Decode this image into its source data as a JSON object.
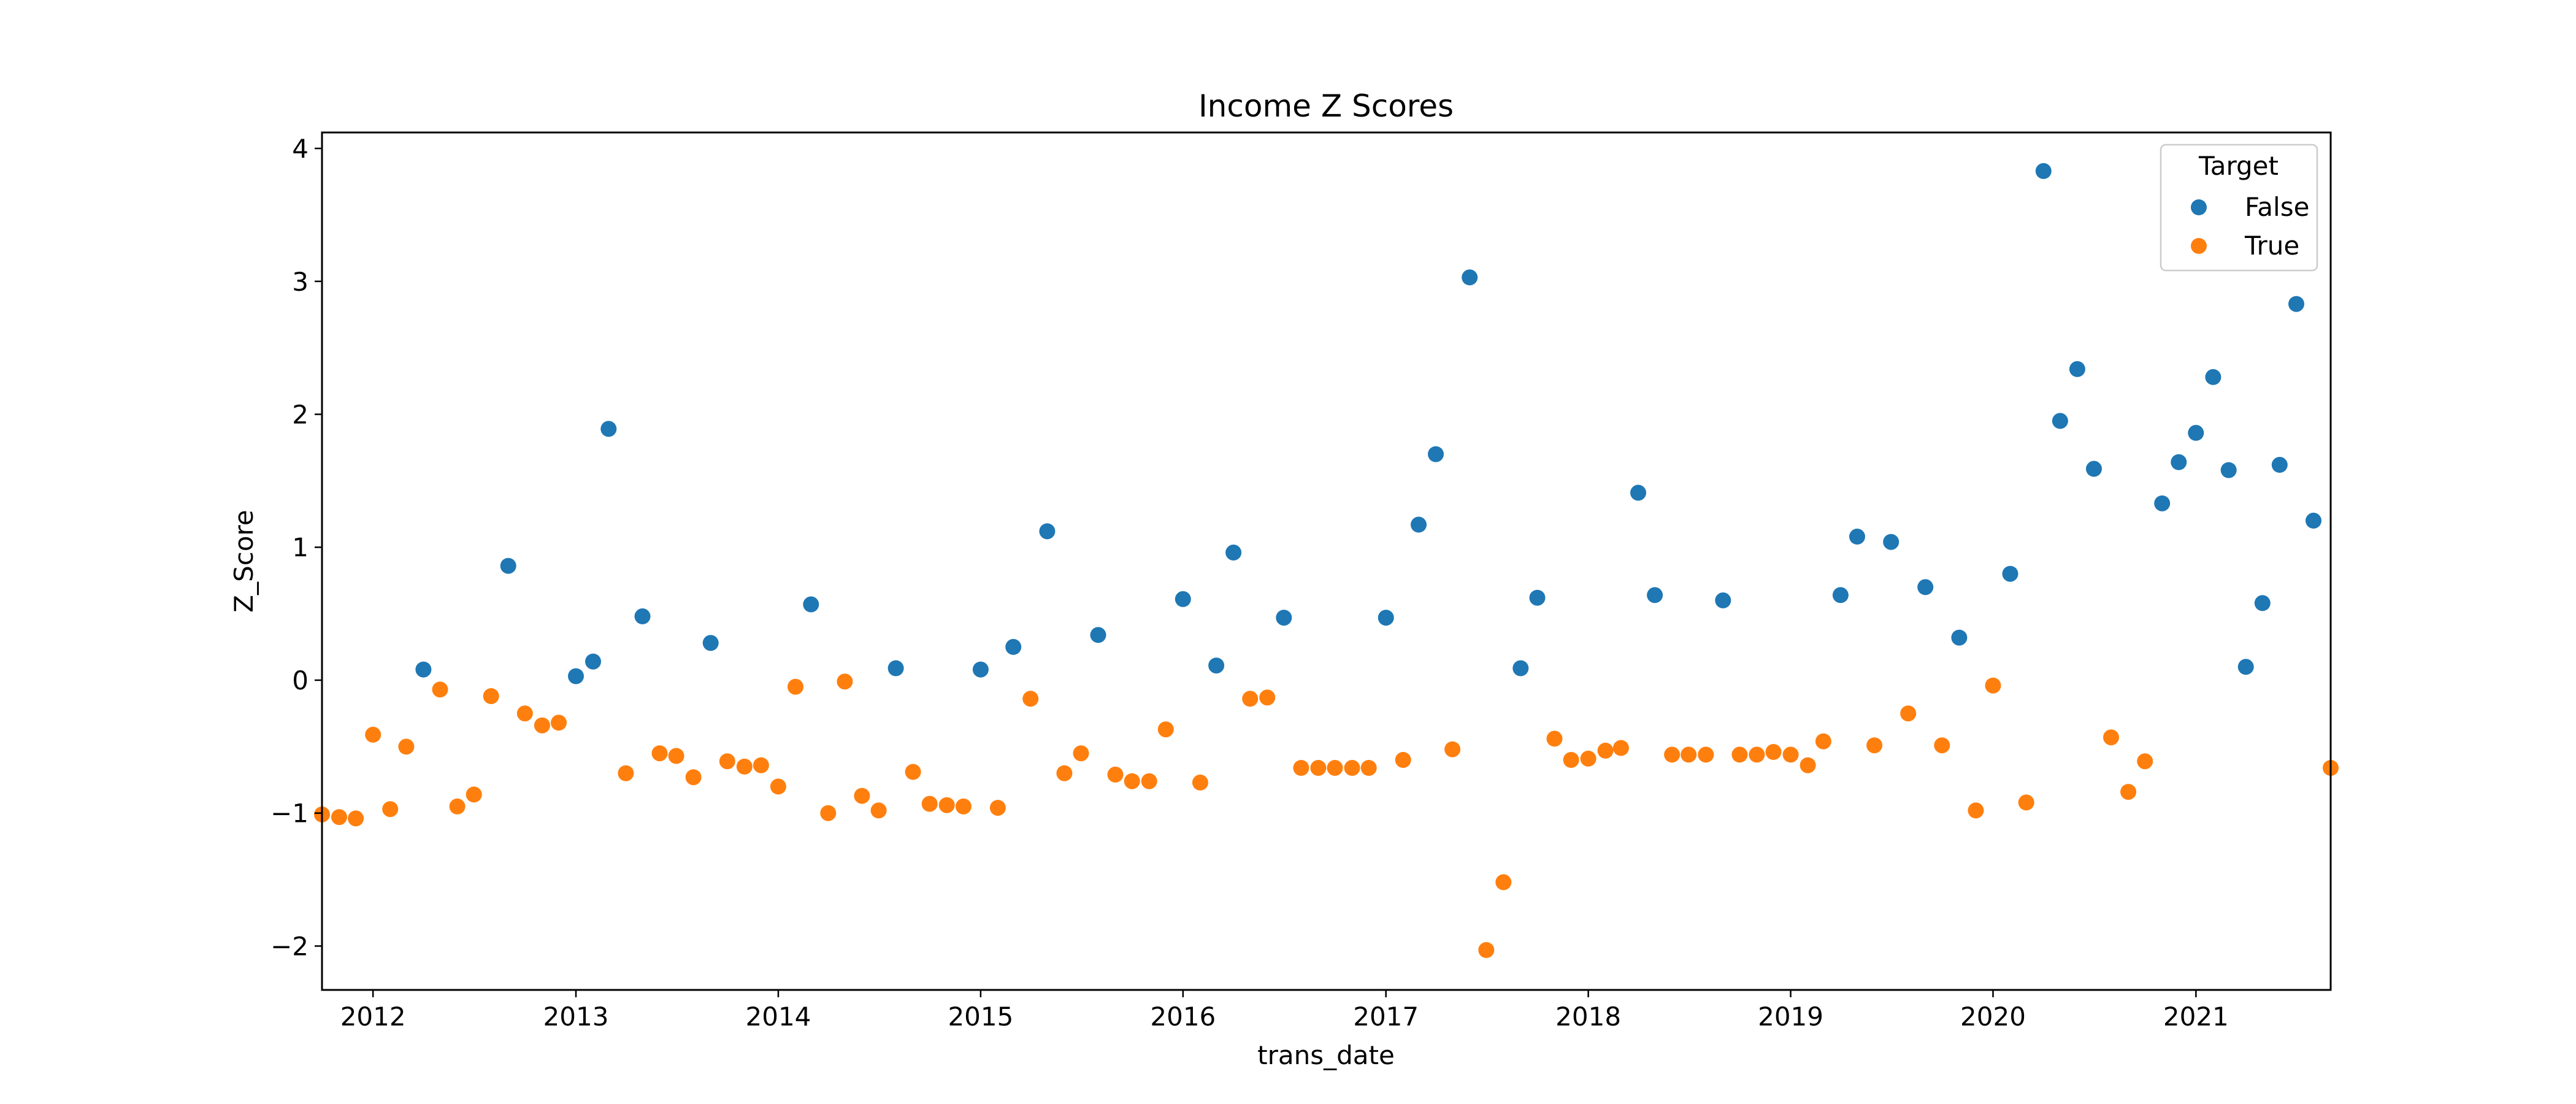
{
  "chart_data": {
    "type": "scatter",
    "title": "Income Z Scores",
    "xlabel": "trans_date",
    "ylabel": "Z_Score",
    "xlim": [
      "2011-10-01",
      "2021-09-01"
    ],
    "ylim": [
      -2.33,
      4.12
    ],
    "x_ticks": [
      "2012",
      "2013",
      "2014",
      "2015",
      "2016",
      "2017",
      "2018",
      "2019",
      "2020",
      "2021"
    ],
    "y_ticks": [
      -2,
      -1,
      0,
      1,
      2,
      3,
      4
    ],
    "y_tick_labels": [
      "−2",
      "−1",
      "0",
      "1",
      "2",
      "3",
      "4"
    ],
    "grid": false,
    "legend": {
      "title": "Target",
      "position": "top-right"
    },
    "series": [
      {
        "name": "False",
        "color": "#1f77b4",
        "points": [
          [
            "2012-04-01",
            0.08
          ],
          [
            "2012-09-01",
            0.86
          ],
          [
            "2013-01-01",
            0.03
          ],
          [
            "2013-02-01",
            0.14
          ],
          [
            "2013-03-01",
            1.89
          ],
          [
            "2013-05-01",
            0.48
          ],
          [
            "2013-09-01",
            0.28
          ],
          [
            "2014-03-01",
            0.57
          ],
          [
            "2014-08-01",
            0.09
          ],
          [
            "2015-01-01",
            0.08
          ],
          [
            "2015-03-01",
            0.25
          ],
          [
            "2015-05-01",
            1.12
          ],
          [
            "2015-08-01",
            0.34
          ],
          [
            "2016-01-01",
            0.61
          ],
          [
            "2016-03-01",
            0.11
          ],
          [
            "2016-04-01",
            0.96
          ],
          [
            "2016-07-01",
            0.47
          ],
          [
            "2017-01-01",
            0.47
          ],
          [
            "2017-03-01",
            1.17
          ],
          [
            "2017-04-01",
            1.7
          ],
          [
            "2017-06-01",
            3.03
          ],
          [
            "2017-09-01",
            0.09
          ],
          [
            "2017-10-01",
            0.62
          ],
          [
            "2018-04-01",
            1.41
          ],
          [
            "2018-05-01",
            0.64
          ],
          [
            "2018-09-01",
            0.6
          ],
          [
            "2019-04-01",
            0.64
          ],
          [
            "2019-05-01",
            1.08
          ],
          [
            "2019-07-01",
            1.04
          ],
          [
            "2019-09-01",
            0.7
          ],
          [
            "2019-11-01",
            0.32
          ],
          [
            "2020-02-01",
            0.8
          ],
          [
            "2020-04-01",
            3.83
          ],
          [
            "2020-05-01",
            1.95
          ],
          [
            "2020-06-01",
            2.34
          ],
          [
            "2020-07-01",
            1.59
          ],
          [
            "2020-11-01",
            1.33
          ],
          [
            "2020-12-01",
            1.64
          ],
          [
            "2021-01-01",
            1.86
          ],
          [
            "2021-02-01",
            2.28
          ],
          [
            "2021-03-01",
            1.58
          ],
          [
            "2021-04-01",
            0.1
          ],
          [
            "2021-05-01",
            0.58
          ],
          [
            "2021-06-01",
            1.62
          ],
          [
            "2021-07-01",
            2.83
          ],
          [
            "2021-08-01",
            1.2
          ]
        ]
      },
      {
        "name": "True",
        "color": "#ff7f0e",
        "points": [
          [
            "2011-10-01",
            -1.01
          ],
          [
            "2011-11-01",
            -1.03
          ],
          [
            "2011-12-01",
            -1.04
          ],
          [
            "2012-01-01",
            -0.41
          ],
          [
            "2012-02-01",
            -0.97
          ],
          [
            "2012-03-01",
            -0.5
          ],
          [
            "2012-05-01",
            -0.07
          ],
          [
            "2012-06-01",
            -0.95
          ],
          [
            "2012-07-01",
            -0.86
          ],
          [
            "2012-08-01",
            -0.12
          ],
          [
            "2012-10-01",
            -0.25
          ],
          [
            "2012-11-01",
            -0.34
          ],
          [
            "2012-12-01",
            -0.32
          ],
          [
            "2013-04-01",
            -0.7
          ],
          [
            "2013-06-01",
            -0.55
          ],
          [
            "2013-07-01",
            -0.57
          ],
          [
            "2013-08-01",
            -0.73
          ],
          [
            "2013-10-01",
            -0.61
          ],
          [
            "2013-11-01",
            -0.65
          ],
          [
            "2013-12-01",
            -0.64
          ],
          [
            "2014-01-01",
            -0.8
          ],
          [
            "2014-02-01",
            -0.05
          ],
          [
            "2014-04-01",
            -1.0
          ],
          [
            "2014-05-01",
            -0.01
          ],
          [
            "2014-06-01",
            -0.87
          ],
          [
            "2014-07-01",
            -0.98
          ],
          [
            "2014-09-01",
            -0.69
          ],
          [
            "2014-10-01",
            -0.93
          ],
          [
            "2014-11-01",
            -0.94
          ],
          [
            "2014-12-01",
            -0.95
          ],
          [
            "2015-02-01",
            -0.96
          ],
          [
            "2015-04-01",
            -0.14
          ],
          [
            "2015-06-01",
            -0.7
          ],
          [
            "2015-07-01",
            -0.55
          ],
          [
            "2015-09-01",
            -0.71
          ],
          [
            "2015-10-01",
            -0.76
          ],
          [
            "2015-11-01",
            -0.76
          ],
          [
            "2015-12-01",
            -0.37
          ],
          [
            "2016-02-01",
            -0.77
          ],
          [
            "2016-05-01",
            -0.14
          ],
          [
            "2016-06-01",
            -0.13
          ],
          [
            "2016-08-01",
            -0.66
          ],
          [
            "2016-09-01",
            -0.66
          ],
          [
            "2016-10-01",
            -0.66
          ],
          [
            "2016-11-01",
            -0.66
          ],
          [
            "2016-12-01",
            -0.66
          ],
          [
            "2017-02-01",
            -0.6
          ],
          [
            "2017-05-01",
            -0.52
          ],
          [
            "2017-07-01",
            -2.03
          ],
          [
            "2017-08-01",
            -1.52
          ],
          [
            "2017-11-01",
            -0.44
          ],
          [
            "2017-12-01",
            -0.6
          ],
          [
            "2018-01-01",
            -0.59
          ],
          [
            "2018-02-01",
            -0.53
          ],
          [
            "2018-03-01",
            -0.51
          ],
          [
            "2018-06-01",
            -0.56
          ],
          [
            "2018-07-01",
            -0.56
          ],
          [
            "2018-08-01",
            -0.56
          ],
          [
            "2018-10-01",
            -0.56
          ],
          [
            "2018-11-01",
            -0.56
          ],
          [
            "2018-12-01",
            -0.54
          ],
          [
            "2019-01-01",
            -0.56
          ],
          [
            "2019-02-01",
            -0.64
          ],
          [
            "2019-03-01",
            -0.46
          ],
          [
            "2019-06-01",
            -0.49
          ],
          [
            "2019-08-01",
            -0.25
          ],
          [
            "2019-10-01",
            -0.49
          ],
          [
            "2019-12-01",
            -0.98
          ],
          [
            "2020-01-01",
            -0.04
          ],
          [
            "2020-03-01",
            -0.92
          ],
          [
            "2020-08-01",
            -0.43
          ],
          [
            "2020-09-01",
            -0.84
          ],
          [
            "2020-10-01",
            -0.61
          ],
          [
            "2021-09-01",
            -0.66
          ]
        ]
      }
    ]
  }
}
